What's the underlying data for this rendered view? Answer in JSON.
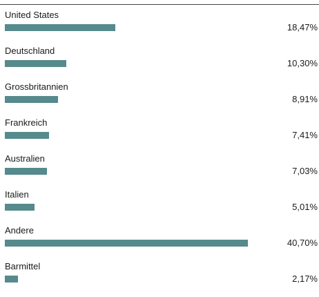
{
  "colors": {
    "bar": "#568a8c",
    "text": "#1a1a1a",
    "rule": "#444444"
  },
  "chart_data": {
    "type": "bar",
    "orientation": "horizontal",
    "categories": [
      "United States",
      "Deutschland",
      "Grossbritannien",
      "Frankreich",
      "Australien",
      "Italien",
      "Andere",
      "Barmittel"
    ],
    "values": [
      18.47,
      10.3,
      8.91,
      7.41,
      7.03,
      5.01,
      40.7,
      2.17
    ],
    "value_labels": [
      "18,47%",
      "10,30%",
      "8,91%",
      "7,41%",
      "7,03%",
      "5,01%",
      "40,70%",
      "2,17%"
    ],
    "xlim": [
      0,
      40.7
    ],
    "grid": false
  }
}
